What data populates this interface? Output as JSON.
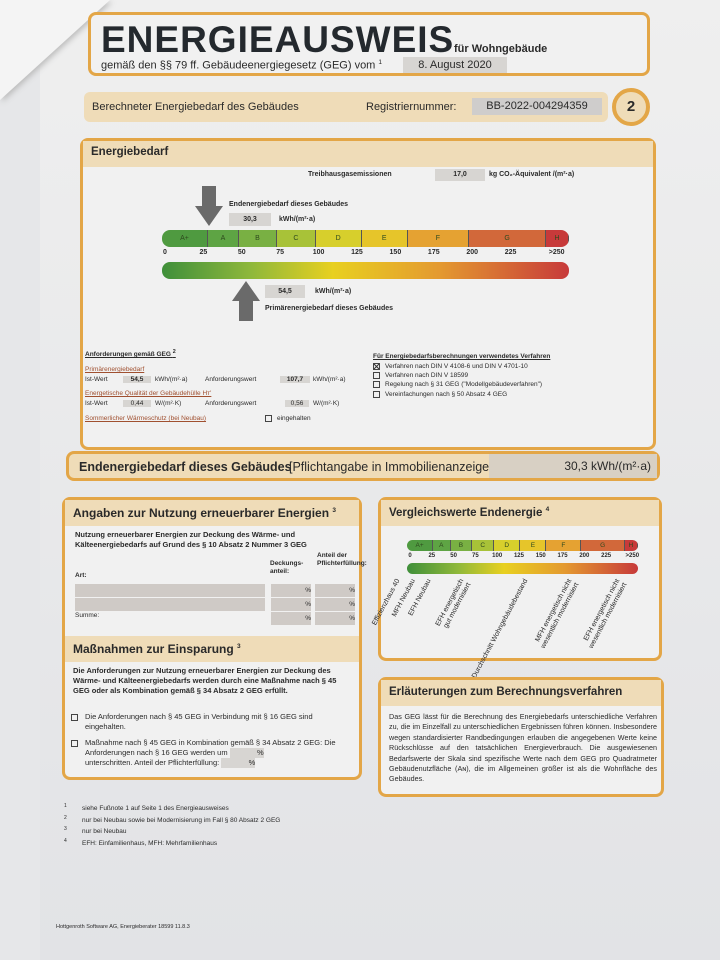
{
  "header": {
    "title": "ENERGIEAUSWEIS",
    "subtitle": "für Wohngebäude",
    "legal": "gemäß den §§ 79 ff. Gebäudeenergiegesetz (GEG) vom",
    "legal_footnote": "1",
    "date": "8. August 2020"
  },
  "subbar": {
    "label": "Berechneter Energiebedarf des Gebäudes",
    "reg_label": "Registriernummer:",
    "reg_value": "BB-2022-004294359",
    "page": "2"
  },
  "energiebedarf": {
    "title": "Energiebedarf",
    "ghg_label": "Treibhausgasemissionen",
    "ghg_value": "17,0",
    "ghg_unit": "kg CO₂-Äquivalent /(m²·a)",
    "end_label": "Endenergiebedarf dieses Gebäudes",
    "end_value": "30,3",
    "end_unit": "kWh/(m²·a)",
    "end_numeric": 30.3,
    "primary_label": "Primärenergiebedarf dieses Gebäudes",
    "primary_value": "54,5",
    "primary_unit": "kWh/(m²·a)",
    "primary_numeric": 54.5,
    "classes": [
      "A+",
      "A",
      "B",
      "C",
      "D",
      "E",
      "F",
      "G",
      "H"
    ],
    "ticks": [
      "0",
      "25",
      "50",
      "75",
      "100",
      "125",
      "150",
      "175",
      "200",
      "225",
      ">250"
    ],
    "colors": {
      "green": "#3f8f3a",
      "yellow": "#e8d020",
      "orange": "#e49a30",
      "red": "#c73a3a"
    }
  },
  "requirements": {
    "title": "Anforderungen gemäß GEG",
    "title_footnote": "2",
    "primary_title": "Primärenergiebedarf",
    "ist_label": "Ist-Wert",
    "ist_primary": "54,5",
    "unit_kwh": "kWh/(m²·a)",
    "anf_label": "Anforderungswert",
    "anf_primary": "107,7",
    "hull_title": "Energetische Qualität der Gebäudehülle H<sub>T</sub>'",
    "hull_title_text": "Energetische Qualität der Gebäudehülle Hт'",
    "ist_hull": "0,44",
    "unit_w": "W/(m²·K)",
    "anf_hull": "0,56",
    "summer_label": "Sommerlicher Wärmeschutz (bei Neubau)",
    "summer_check": "eingehalten"
  },
  "method": {
    "title": "Für Energiebedarfsberechnungen verwendetes Verfahren",
    "options": [
      {
        "label": "Verfahren nach DIN V 4108-6 und DIN V 4701-10",
        "checked": true
      },
      {
        "label": "Verfahren nach DIN V 18599",
        "checked": false
      },
      {
        "label": "Regelung nach § 31 GEG (\"Modellgebäudeverfahren\")",
        "checked": false
      },
      {
        "label": "Vereinfachungen nach § 50 Absatz 4 GEG",
        "checked": false
      }
    ]
  },
  "end_banner": {
    "label": "Endenergiebedarf dieses Gebäudes",
    "note": "[Pflichtangabe in Immobilienanzeigen]",
    "value": "30,3 kWh/(m²·a)"
  },
  "renewables": {
    "title": "Angaben zur Nutzung erneuerbarer Energien",
    "footnote": "3",
    "intro": "Nutzung erneuerbarer Energien zur Deckung des Wärme- und Kälteenergiebedarfs auf Grund des § 10 Absatz 2 Nummer 3 GEG",
    "col_art": "Art:",
    "col_deckung": "Deckungs-anteil:",
    "col_pflicht": "Anteil der Pflichterfüllung:",
    "percent": "%",
    "sum_label": "Summe:"
  },
  "measures": {
    "title": "Maßnahmen zur Einsparung",
    "footnote": "3",
    "intro": "Die Anforderungen zur Nutzung erneuerbarer Energien zur Deckung des Wärme- und Kälteenergiebedarfs werden durch eine Maßnahme nach § 45 GEG oder als Kombination gemäß § 34 Absatz 2 GEG erfüllt.",
    "option1": "Die Anforderungen nach § 45 GEG in Verbindung mit § 16 GEG sind eingehalten.",
    "option2a": "Maßnahme nach § 45 GEG in Kombination gemäß § 34 Absatz 2 GEG: Die Anforderungen nach § 16 GEG werden um",
    "option2b": "unterschritten. Anteil der Pflichterfüllung:",
    "percent": "%"
  },
  "comparison": {
    "title": "Vergleichswerte Endenergie",
    "footnote": "4",
    "classes": [
      "A+",
      "A",
      "B",
      "C",
      "D",
      "E",
      "F",
      "G",
      "H"
    ],
    "ticks": [
      "0",
      "25",
      "50",
      "75",
      "100",
      "125",
      "150",
      "175",
      "200",
      "225",
      ">250"
    ],
    "labels": [
      "Effizienzhaus 40",
      "MFH Neubau",
      "EFH Neubau",
      "EFH energetisch gut modernisiert",
      "Durchschnitt Wohngebäudebestand",
      "MFH energetisch nicht wesentlich modernisiert",
      "EFH energetisch nicht wesentlich modernisiert"
    ]
  },
  "explanation": {
    "title": "Erläuterungen zum Berechnungsverfahren",
    "text": "Das GEG lässt für die Berechnung des Energiebedarfs unterschiedliche Verfahren zu, die im Einzelfall zu unterschiedlichen Ergebnissen führen können. Insbesondere wegen standardisierter Randbedingungen erlauben die angegebenen Werte keine Rückschlüsse auf den tatsächlichen Energieverbrauch. Die ausgewiesenen Bedarfswerte der Skala sind spezifische Werte nach dem GEG pro Quadratmeter Gebäudenutzfläche (Aɴ), die im Allgemeinen größer ist als die Wohnfläche des Gebäudes."
  },
  "footnotes": [
    {
      "num": "1",
      "text": "siehe Fußnote 1 auf Seite 1 des Energieausweises"
    },
    {
      "num": "2",
      "text": "nur bei Neubau sowie bei Modernisierung im Fall § 80 Absatz 2 GEG"
    },
    {
      "num": "3",
      "text": "nur bei Neubau"
    },
    {
      "num": "4",
      "text": "EFH: Einfamilienhaus, MFH: Mehrfamilienhaus"
    }
  ],
  "software": "Hottgenroth Software AG, Energieberater 18599 11.8.3"
}
